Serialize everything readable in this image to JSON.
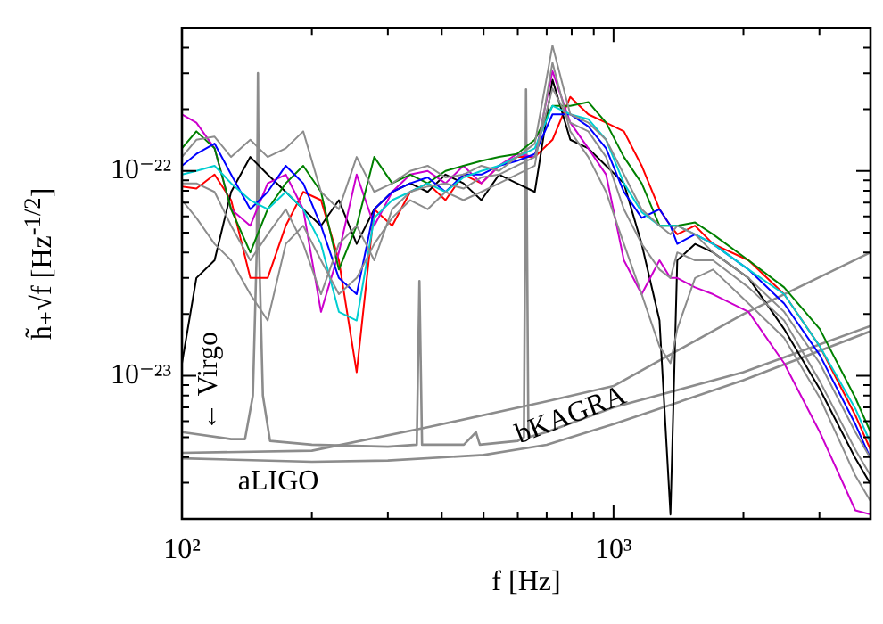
{
  "chart_data": {
    "type": "line",
    "xlabel": "f [Hz]",
    "ylabel": "h̃₊√f [Hz$^{-1/2}$]",
    "log": "xy",
    "grid": false,
    "legend": false,
    "marker": "none",
    "line_style": "solid",
    "xlim": [
      100,
      3940
    ],
    "ylim": [
      2e-24,
      5e-22
    ],
    "xticks": [
      {
        "value": 100,
        "label": "10²"
      },
      {
        "value": 200,
        "label": null
      },
      {
        "value": 300,
        "label": null
      },
      {
        "value": 400,
        "label": null
      },
      {
        "value": 500,
        "label": null
      },
      {
        "value": 600,
        "label": null
      },
      {
        "value": 700,
        "label": null
      },
      {
        "value": 800,
        "label": null
      },
      {
        "value": 900,
        "label": null
      },
      {
        "value": 1000,
        "label": "10³"
      },
      {
        "value": 2000,
        "label": null
      },
      {
        "value": 3000,
        "label": null
      }
    ],
    "yticks": [
      {
        "value": 2e-24,
        "label": null
      },
      {
        "value": 3e-24,
        "label": null
      },
      {
        "value": 4e-24,
        "label": null
      },
      {
        "value": 5e-24,
        "label": null
      },
      {
        "value": 6e-24,
        "label": null
      },
      {
        "value": 7e-24,
        "label": null
      },
      {
        "value": 8e-24,
        "label": null
      },
      {
        "value": 9e-24,
        "label": null
      },
      {
        "value": 1e-23,
        "label": "10⁻²³"
      },
      {
        "value": 2e-23,
        "label": null
      },
      {
        "value": 3e-23,
        "label": null
      },
      {
        "value": 4e-23,
        "label": null
      },
      {
        "value": 5e-23,
        "label": null
      },
      {
        "value": 6e-23,
        "label": null
      },
      {
        "value": 7e-23,
        "label": null
      },
      {
        "value": 8e-23,
        "label": null
      },
      {
        "value": 9e-23,
        "label": null
      },
      {
        "value": 1e-22,
        "label": "10⁻²²"
      },
      {
        "value": 2e-22,
        "label": null
      },
      {
        "value": 3e-22,
        "label": null
      },
      {
        "value": 4e-22,
        "label": null
      },
      {
        "value": 5e-22,
        "label": null
      }
    ],
    "x": [
      100,
      108,
      119,
      130,
      144,
      158,
      174,
      191,
      210,
      231,
      254,
      279,
      307,
      338,
      371,
      408,
      449,
      494,
      543,
      597,
      657,
      722,
      794,
      874,
      961,
      1057,
      1162,
      1278,
      1355,
      1405,
      1545,
      1700,
      2055,
      2485,
      3006,
      3634,
      3940
    ],
    "series": [
      {
        "color": "#8c8c8c",
        "values": [
          1.17e-22,
          1.42e-22,
          1.47e-22,
          1.17e-22,
          1.42e-22,
          1.17e-22,
          1.29e-22,
          1.56e-22,
          7.9e-23,
          6.5e-23,
          1.17e-22,
          7.9e-23,
          8.7e-23,
          1e-22,
          1.06e-22,
          9.3e-23,
          9.6e-23,
          1.06e-22,
          1e-22,
          1.17e-22,
          1.36e-22,
          4.1e-22,
          1.89e-22,
          1.72e-22,
          1.42e-22,
          9.6e-23,
          6.5e-23,
          5.4e-23,
          4.9e-23,
          5.4e-23,
          4.9e-23,
          4e-23,
          3e-23,
          2.05e-23,
          1.15e-23,
          5.3e-24,
          3.95e-24
        ]
      },
      {
        "color": "#8c8c8c",
        "values": [
          7.2e-23,
          5.9e-23,
          4.4e-23,
          3.66e-23,
          2.5e-23,
          1.86e-23,
          4.4e-23,
          5.4e-23,
          3.66e-23,
          2.5e-23,
          3e-23,
          4.4e-23,
          5.9e-23,
          7.2e-23,
          6.5e-23,
          7.9e-23,
          7.2e-23,
          7.9e-23,
          8.7e-23,
          9.6e-23,
          1.06e-22,
          3.38e-22,
          1.56e-22,
          1.17e-22,
          7.9e-23,
          4.4e-23,
          2.5e-23,
          1.39e-23,
          1.15e-23,
          1.69e-23,
          3e-23,
          3.3e-23,
          2.25e-23,
          1.53e-23,
          7.8e-24,
          3.25e-24,
          2.44e-24
        ]
      },
      {
        "color": "#8c8c8c",
        "values": [
          8.7e-23,
          8.7e-23,
          7.9e-23,
          5.4e-23,
          3.66e-23,
          4.9e-23,
          6.5e-23,
          4.4e-23,
          2.5e-23,
          4.4e-23,
          5.4e-23,
          3.66e-23,
          6.5e-23,
          7.9e-23,
          8.4e-23,
          8.7e-23,
          8.2e-23,
          9.3e-23,
          9.6e-23,
          1.06e-22,
          1.17e-22,
          2.53e-22,
          1.72e-22,
          1.56e-22,
          1.17e-22,
          6.5e-23,
          4.4e-23,
          3.3e-23,
          3e-23,
          4e-23,
          3.66e-23,
          3.66e-23,
          2.7e-23,
          1.86e-23,
          9.4e-24,
          4.35e-24,
          3.25e-24
        ]
      },
      {
        "color": "#00ced1",
        "values": [
          9.6e-23,
          1e-22,
          1.06e-22,
          8.7e-23,
          7.2e-23,
          6.5e-23,
          7.9e-23,
          6.5e-23,
          4.4e-23,
          2.05e-23,
          1.86e-23,
          5.9e-23,
          7.2e-23,
          7.9e-23,
          8.7e-23,
          7.9e-23,
          9.3e-23,
          1e-22,
          1.06e-22,
          1.17e-22,
          1.29e-22,
          2.08e-22,
          1.89e-22,
          1.79e-22,
          1.42e-22,
          8.7e-23,
          6.3e-23,
          5.4e-23,
          5.4e-23,
          5.4e-23,
          4.9e-23,
          4.4e-23,
          3.3e-23,
          2.5e-23,
          1.39e-23,
          6.9e-24,
          4.7e-24
        ]
      },
      {
        "color": "#0000ff",
        "values": [
          1.06e-22,
          1.21e-22,
          1.36e-22,
          9.6e-23,
          6.5e-23,
          7.9e-23,
          1.06e-22,
          8.7e-23,
          5.4e-23,
          3e-23,
          2.5e-23,
          6.5e-23,
          7.9e-23,
          8.7e-23,
          9.3e-23,
          7.9e-23,
          9.6e-23,
          9.6e-23,
          1.06e-22,
          1.12e-22,
          1.21e-22,
          1.89e-22,
          1.89e-22,
          1.65e-22,
          1.29e-22,
          7.9e-23,
          5.9e-23,
          6.5e-23,
          5.4e-23,
          4.4e-23,
          4.9e-23,
          4.4e-23,
          3.3e-23,
          2.25e-23,
          1.26e-23,
          5.8e-24,
          3.95e-24
        ]
      },
      {
        "color": "#008000",
        "values": [
          1.29e-22,
          1.56e-22,
          1.29e-22,
          6.5e-23,
          4e-23,
          6.5e-23,
          8.7e-23,
          1.06e-22,
          7.9e-23,
          3.3e-23,
          5.4e-23,
          1.17e-22,
          8.7e-23,
          9.6e-23,
          8.7e-23,
          1e-22,
          1.06e-22,
          1.12e-22,
          1.17e-22,
          1.21e-22,
          1.42e-22,
          2.08e-22,
          2.08e-22,
          2.17e-22,
          1.72e-22,
          1.17e-22,
          8.7e-23,
          5.4e-23,
          5.4e-23,
          5.4e-23,
          5.6e-23,
          4.9e-23,
          3.66e-23,
          2.7e-23,
          1.69e-23,
          7.8e-24,
          5.3e-24
        ]
      },
      {
        "color": "#cc00cc",
        "values": [
          1.89e-22,
          1.72e-22,
          1.29e-22,
          6.5e-23,
          5.4e-23,
          8.7e-23,
          9.6e-23,
          6.5e-23,
          2.05e-23,
          4e-23,
          9.6e-23,
          5.4e-23,
          7.9e-23,
          9.6e-23,
          1e-22,
          8.7e-23,
          1.06e-22,
          8.7e-23,
          1.06e-22,
          1.21e-22,
          1.17e-22,
          3.07e-22,
          1.72e-22,
          1.29e-22,
          9.6e-23,
          3.66e-23,
          2.5e-23,
          3.66e-23,
          3e-23,
          3e-23,
          2.7e-23,
          2.5e-23,
          2.05e-23,
          1.15e-23,
          5.3e-24,
          2.2e-24,
          2.1e-24
        ]
      },
      {
        "color": "#000000",
        "values": [
          1.15e-23,
          3e-23,
          3.66e-23,
          7.9e-23,
          1.17e-22,
          9.6e-23,
          7.9e-23,
          6.5e-23,
          5.4e-23,
          7.2e-23,
          4.4e-23,
          6.5e-23,
          7.9e-23,
          8.7e-23,
          7.9e-23,
          9.6e-23,
          8.7e-23,
          7.2e-23,
          9.6e-23,
          8.7e-23,
          7.9e-23,
          2.79e-22,
          1.42e-22,
          1.29e-22,
          1.06e-22,
          8.7e-23,
          4.4e-23,
          1.86e-23,
          2.1e-24,
          3.66e-23,
          4.4e-23,
          4e-23,
          3e-23,
          1.69e-23,
          8.6e-24,
          3.95e-24,
          2.96e-24
        ]
      },
      {
        "color": "#ff0000",
        "values": [
          8.4e-23,
          8.2e-23,
          9.6e-23,
          7.2e-23,
          3e-23,
          3e-23,
          5.4e-23,
          7.9e-23,
          7.2e-23,
          3.66e-23,
          1.04e-23,
          6.5e-23,
          5.4e-23,
          7.9e-23,
          8.7e-23,
          7.2e-23,
          9.6e-23,
          8.7e-23,
          1.06e-22,
          1.17e-22,
          1.17e-22,
          1.42e-22,
          2.3e-22,
          1.89e-22,
          1.72e-22,
          1.56e-22,
          1.06e-22,
          6.5e-23,
          5.4e-23,
          4.9e-23,
          5.4e-23,
          4.4e-23,
          3.66e-23,
          2.5e-23,
          1.39e-23,
          6.4e-24,
          4.35e-24
        ]
      },
      {
        "color": "#8c8c8c",
        "x": [
          100,
          130,
          140,
          146,
          149,
          150,
          151,
          154,
          160,
          200,
          300,
          350,
          355,
          360,
          450,
          480,
          490,
          600,
          620,
          627,
          635,
          700,
          1000,
          2000,
          3940
        ],
        "values": [
          5.3e-24,
          4.9e-24,
          4.9e-24,
          8e-24,
          4e-23,
          3e-22,
          4e-23,
          8e-24,
          4.8e-24,
          4.6e-24,
          4.5e-24,
          4.6e-24,
          2.9e-23,
          4.6e-24,
          4.6e-24,
          5.3e-24,
          4.6e-24,
          4.8e-24,
          5e-24,
          2.5e-22,
          5e-24,
          5.3e-24,
          7e-24,
          1.04e-23,
          1.75e-23
        ]
      },
      {
        "color": "#8c8c8c",
        "x": [
          100,
          200,
          300,
          500,
          700,
          1000,
          2000,
          3940
        ],
        "values": [
          3.95e-24,
          3.8e-24,
          3.85e-24,
          4.1e-24,
          4.6e-24,
          5.8e-24,
          9.5e-24,
          1.65e-23
        ]
      },
      {
        "color": "#8c8c8c",
        "x": [
          100,
          200,
          371,
          700,
          1000,
          2000,
          3940
        ],
        "values": [
          4.2e-24,
          4.3e-24,
          5.6e-24,
          7.5e-24,
          8.9e-24,
          2e-23,
          4e-23
        ]
      }
    ],
    "annotations": [
      "← Virgo",
      "aLIGO",
      "bKAGRA"
    ]
  }
}
